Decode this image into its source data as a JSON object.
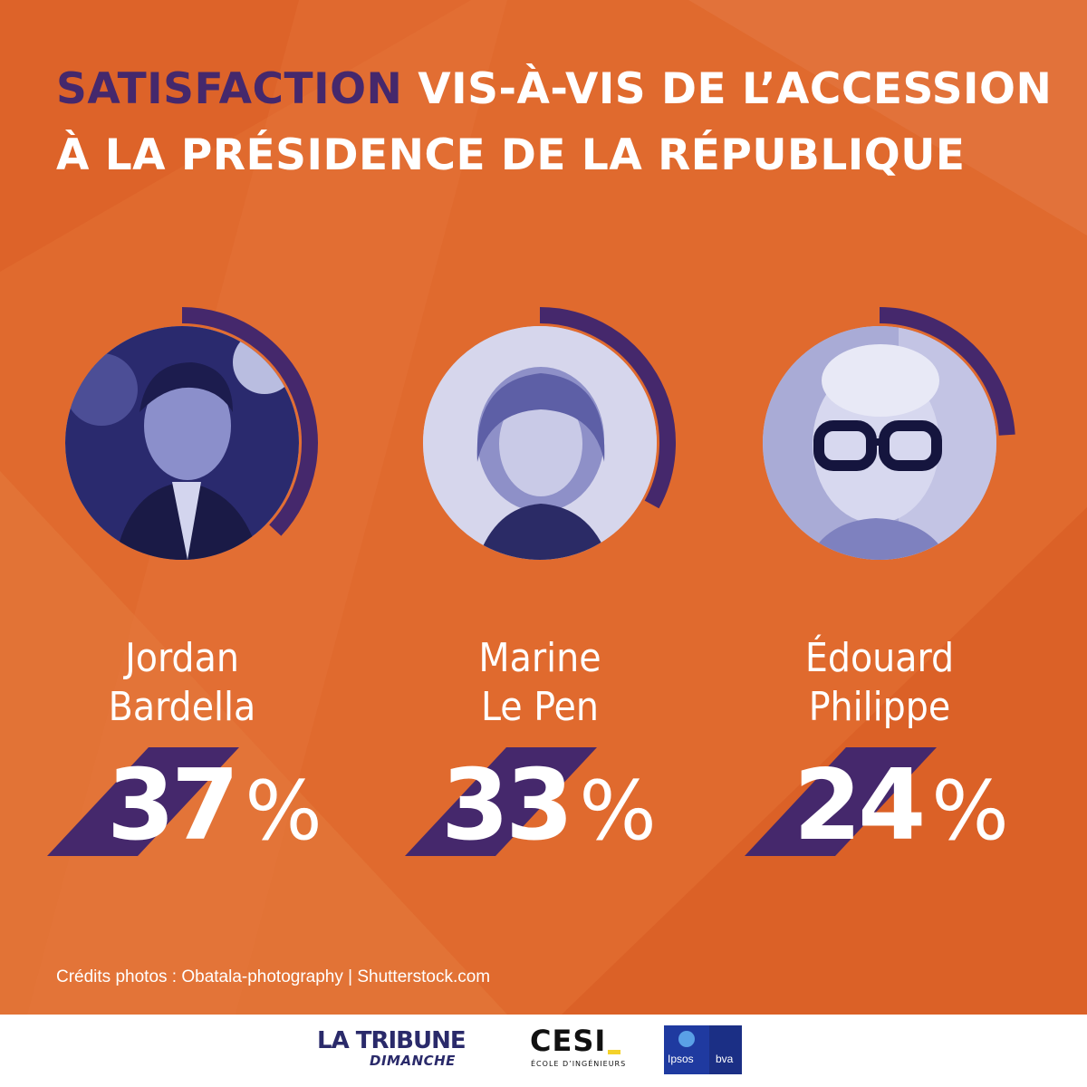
{
  "title": {
    "highlight": "SATISFACTION",
    "rest_line1": "VIS-À-VIS DE L’ACCESSION",
    "line2": "À LA PRÉSIDENCE DE LA RÉPUBLIQUE"
  },
  "colors": {
    "background": "#e06a2e",
    "accent": "#45286c",
    "text": "#ffffff"
  },
  "candidates": [
    {
      "first_name": "Jordan",
      "last_name": "Bardella",
      "value": "37",
      "unit": "%",
      "photo": "jordan-bardella-photo"
    },
    {
      "first_name": "Marine",
      "last_name": "Le Pen",
      "value": "33",
      "unit": "%",
      "photo": "marine-le-pen-photo"
    },
    {
      "first_name": "Édouard",
      "last_name": "Philippe",
      "value": "24",
      "unit": "%",
      "photo": "edouard-philippe-photo"
    }
  ],
  "chart_data": {
    "type": "pie",
    "title": "SATISFACTION VIS-À-VIS DE L’ACCESSION À LA PRÉSIDENCE DE LA RÉPUBLIQUE",
    "categories": [
      "Jordan Bardella",
      "Marine Le Pen",
      "Édouard Philippe"
    ],
    "values": [
      37,
      33,
      24
    ],
    "unit": "%"
  },
  "credits": "Crédits photos : Obatala-photography | Shutterstock.com",
  "footer": {
    "tribune_line1": "LA TRIBUNE",
    "tribune_line2": "DIMANCHE",
    "cesi_name": "CESI",
    "cesi_sub": "ÉCOLE D’INGÉNIEURS",
    "ipsos": "Ipsos",
    "bva": "bva"
  }
}
